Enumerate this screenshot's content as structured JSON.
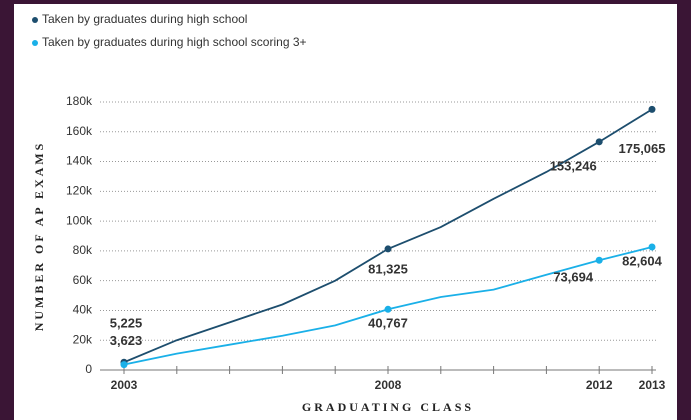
{
  "chart_data": {
    "type": "line",
    "x_label": "GRADUATING CLASS",
    "y_label": "NUMBER OF AP EXAMS",
    "categories": [
      "2003",
      null,
      null,
      null,
      null,
      "2008",
      null,
      null,
      null,
      "2012",
      "2013"
    ],
    "series": [
      {
        "name": "Taken by graduates during high school",
        "color": "#1d4e6e",
        "values": [
          5225,
          20000,
          32000,
          44000,
          60000,
          81325,
          96000,
          115000,
          133000,
          153246,
          175065
        ],
        "value_labels": [
          "5,225",
          null,
          null,
          null,
          null,
          "81,325",
          null,
          null,
          null,
          "153,246",
          "175,065"
        ]
      },
      {
        "name": "Taken by graduates during high school scoring 3+",
        "color": "#1ab0e8",
        "values": [
          3623,
          11000,
          17000,
          23000,
          30000,
          40767,
          49000,
          54000,
          64000,
          73694,
          82604
        ],
        "value_labels": [
          "3,623",
          null,
          null,
          null,
          null,
          "40,767",
          null,
          null,
          null,
          "73,694",
          "82,604"
        ]
      }
    ],
    "ylim": [
      0,
      180000
    ],
    "yticks": [
      0,
      {
        "value": 20000,
        "label": "20k"
      },
      {
        "value": 40000,
        "label": "40k"
      },
      {
        "value": 60000,
        "label": "60k"
      },
      {
        "value": 80000,
        "label": "80k"
      },
      {
        "value": 100000,
        "label": "100k"
      },
      {
        "value": 120000,
        "label": "120k"
      },
      {
        "value": 140000,
        "label": "140k"
      },
      {
        "value": 160000,
        "label": "160k"
      },
      {
        "value": 180000,
        "label": "180k"
      }
    ],
    "grid": true,
    "legend": "top-left"
  }
}
